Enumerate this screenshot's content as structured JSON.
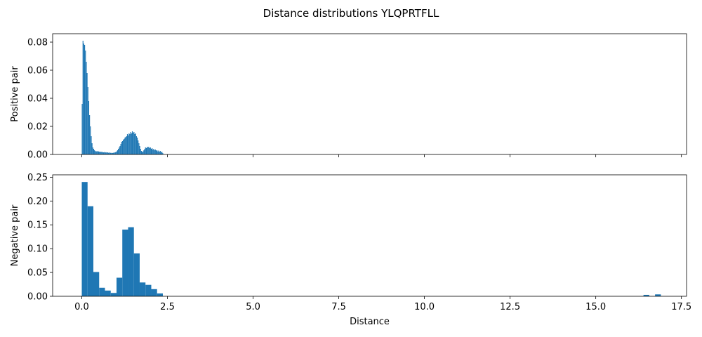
{
  "title": "Distance distributions YLQPRTFLL",
  "chart_data": [
    {
      "type": "bar",
      "ylabel": "Positive pair",
      "xlabel": "",
      "xlim": [
        -0.85,
        17.65
      ],
      "ylim": [
        0,
        0.086
      ],
      "xticks": [
        0.0,
        2.5,
        5.0,
        7.5,
        10.0,
        12.5,
        15.0,
        17.5
      ],
      "xtick_labels_visible": false,
      "yticks": [
        0.0,
        0.02,
        0.04,
        0.06,
        0.08
      ],
      "ytick_labels": [
        "0.00",
        "0.02",
        "0.04",
        "0.06",
        "0.08"
      ],
      "bin_width": 0.024,
      "color": "#1f77b4",
      "bins": [
        [
          0.0,
          0.036
        ],
        [
          0.024,
          0.081
        ],
        [
          0.048,
          0.079
        ],
        [
          0.072,
          0.078
        ],
        [
          0.096,
          0.074
        ],
        [
          0.12,
          0.066
        ],
        [
          0.144,
          0.058
        ],
        [
          0.168,
          0.048
        ],
        [
          0.192,
          0.038
        ],
        [
          0.216,
          0.028
        ],
        [
          0.24,
          0.02
        ],
        [
          0.264,
          0.013
        ],
        [
          0.288,
          0.008
        ],
        [
          0.312,
          0.005
        ],
        [
          0.336,
          0.004
        ],
        [
          0.36,
          0.003
        ],
        [
          0.384,
          0.0025
        ],
        [
          0.408,
          0.002
        ],
        [
          0.432,
          0.0025
        ],
        [
          0.456,
          0.002
        ],
        [
          0.48,
          0.0022
        ],
        [
          0.504,
          0.002
        ],
        [
          0.528,
          0.0018
        ],
        [
          0.552,
          0.002
        ],
        [
          0.576,
          0.0016
        ],
        [
          0.6,
          0.0018
        ],
        [
          0.624,
          0.0015
        ],
        [
          0.648,
          0.0017
        ],
        [
          0.672,
          0.0014
        ],
        [
          0.696,
          0.0016
        ],
        [
          0.72,
          0.0013
        ],
        [
          0.744,
          0.0015
        ],
        [
          0.768,
          0.0012
        ],
        [
          0.792,
          0.0014
        ],
        [
          0.816,
          0.0011
        ],
        [
          0.84,
          0.0012
        ],
        [
          0.864,
          0.001
        ],
        [
          0.888,
          0.0011
        ],
        [
          0.912,
          0.0012
        ],
        [
          0.936,
          0.0013
        ],
        [
          0.96,
          0.0015
        ],
        [
          0.984,
          0.0018
        ],
        [
          1.008,
          0.0022
        ],
        [
          1.032,
          0.003
        ],
        [
          1.056,
          0.004
        ],
        [
          1.08,
          0.005
        ],
        [
          1.104,
          0.006
        ],
        [
          1.128,
          0.0075
        ],
        [
          1.152,
          0.009
        ],
        [
          1.176,
          0.0095
        ],
        [
          1.2,
          0.0105
        ],
        [
          1.224,
          0.011
        ],
        [
          1.248,
          0.012
        ],
        [
          1.272,
          0.0125
        ],
        [
          1.296,
          0.013
        ],
        [
          1.32,
          0.0145
        ],
        [
          1.344,
          0.0135
        ],
        [
          1.368,
          0.015
        ],
        [
          1.392,
          0.0145
        ],
        [
          1.416,
          0.016
        ],
        [
          1.44,
          0.015
        ],
        [
          1.464,
          0.0165
        ],
        [
          1.488,
          0.0155
        ],
        [
          1.512,
          0.016
        ],
        [
          1.536,
          0.0145
        ],
        [
          1.56,
          0.015
        ],
        [
          1.584,
          0.013
        ],
        [
          1.608,
          0.012
        ],
        [
          1.632,
          0.01
        ],
        [
          1.656,
          0.008
        ],
        [
          1.68,
          0.006
        ],
        [
          1.704,
          0.004
        ],
        [
          1.728,
          0.0025
        ],
        [
          1.752,
          0.0018
        ],
        [
          1.776,
          0.0022
        ],
        [
          1.8,
          0.003
        ],
        [
          1.824,
          0.004
        ],
        [
          1.848,
          0.005
        ],
        [
          1.872,
          0.0045
        ],
        [
          1.896,
          0.0055
        ],
        [
          1.92,
          0.005
        ],
        [
          1.944,
          0.0055
        ],
        [
          1.968,
          0.0045
        ],
        [
          1.992,
          0.005
        ],
        [
          2.016,
          0.004
        ],
        [
          2.04,
          0.0045
        ],
        [
          2.064,
          0.0035
        ],
        [
          2.088,
          0.004
        ],
        [
          2.112,
          0.003
        ],
        [
          2.136,
          0.0035
        ],
        [
          2.16,
          0.0028
        ],
        [
          2.184,
          0.003
        ],
        [
          2.208,
          0.0022
        ],
        [
          2.232,
          0.0028
        ],
        [
          2.256,
          0.002
        ],
        [
          2.28,
          0.0025
        ],
        [
          2.304,
          0.0015
        ],
        [
          2.328,
          0.002
        ],
        [
          2.352,
          0.001
        ]
      ]
    },
    {
      "type": "bar",
      "ylabel": "Negative pair",
      "xlabel": "Distance",
      "xlim": [
        -0.85,
        17.65
      ],
      "ylim": [
        0,
        0.255
      ],
      "xticks": [
        0.0,
        2.5,
        5.0,
        7.5,
        10.0,
        12.5,
        15.0,
        17.5
      ],
      "xtick_labels": [
        "0.0",
        "2.5",
        "5.0",
        "7.5",
        "10.0",
        "12.5",
        "15.0",
        "17.5"
      ],
      "yticks": [
        0.0,
        0.05,
        0.1,
        0.15,
        0.2,
        0.25
      ],
      "ytick_labels": [
        "0.00",
        "0.05",
        "0.10",
        "0.15",
        "0.20",
        "0.25"
      ],
      "bin_width": 0.169,
      "color": "#1f77b4",
      "bins": [
        [
          0.0,
          0.24
        ],
        [
          0.169,
          0.189
        ],
        [
          0.338,
          0.051
        ],
        [
          0.507,
          0.018
        ],
        [
          0.676,
          0.012
        ],
        [
          0.845,
          0.007
        ],
        [
          1.014,
          0.039
        ],
        [
          1.183,
          0.14
        ],
        [
          1.352,
          0.145
        ],
        [
          1.521,
          0.09
        ],
        [
          1.69,
          0.029
        ],
        [
          1.859,
          0.024
        ],
        [
          2.028,
          0.015
        ],
        [
          2.197,
          0.006
        ],
        [
          16.393,
          0.003
        ],
        [
          16.731,
          0.004
        ]
      ]
    }
  ]
}
